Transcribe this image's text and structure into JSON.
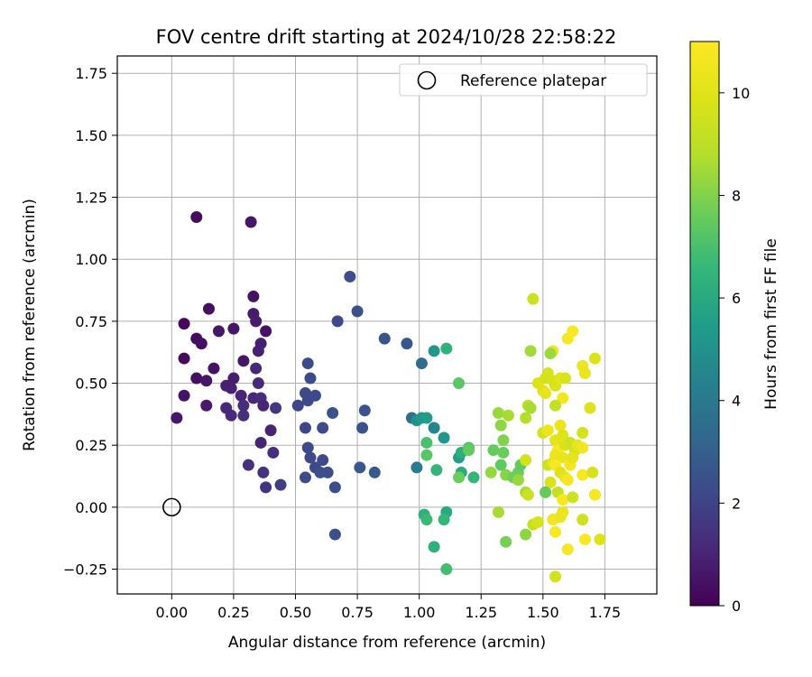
{
  "chart_data": {
    "type": "scatter",
    "title": "FOV centre drift starting at 2024/10/28 22:58:22",
    "xlabel": "Angular distance from reference (arcmin)",
    "ylabel": "Rotation from reference (arcmin)",
    "xlim": [
      -0.22,
      1.96
    ],
    "ylim": [
      -0.35,
      1.82
    ],
    "xticks": [
      0.0,
      0.25,
      0.5,
      0.75,
      1.0,
      1.25,
      1.5,
      1.75
    ],
    "xtick_labels": [
      "0.00",
      "0.25",
      "0.50",
      "0.75",
      "1.00",
      "1.25",
      "1.50",
      "1.75"
    ],
    "yticks": [
      -0.25,
      0.0,
      0.25,
      0.5,
      0.75,
      1.0,
      1.25,
      1.5,
      1.75
    ],
    "ytick_labels": [
      "−0.25",
      "0.00",
      "0.25",
      "0.50",
      "0.75",
      "1.00",
      "1.25",
      "1.50",
      "1.75"
    ],
    "grid": true,
    "legend": {
      "position": "top-right",
      "entries": [
        "Reference platepar"
      ]
    },
    "reference_point": {
      "x": 0.0,
      "y": 0.0,
      "label": "Reference platepar"
    },
    "colorbar": {
      "label": "Hours from first FF file",
      "colormap": "viridis",
      "range": [
        0,
        11
      ],
      "ticks": [
        0,
        2,
        4,
        6,
        8,
        10
      ],
      "tick_labels": [
        "0",
        "2",
        "4",
        "6",
        "8",
        "10"
      ]
    },
    "points": [
      {
        "x": 0.1,
        "y": 1.17,
        "c": 0.3
      },
      {
        "x": 0.32,
        "y": 1.15,
        "c": 0.6
      },
      {
        "x": 0.05,
        "y": 0.74,
        "c": 0.2
      },
      {
        "x": 0.15,
        "y": 0.8,
        "c": 0.4
      },
      {
        "x": 0.1,
        "y": 0.68,
        "c": 0.3
      },
      {
        "x": 0.12,
        "y": 0.66,
        "c": 0.4
      },
      {
        "x": 0.19,
        "y": 0.71,
        "c": 0.6
      },
      {
        "x": 0.25,
        "y": 0.72,
        "c": 0.6
      },
      {
        "x": 0.33,
        "y": 0.85,
        "c": 0.5
      },
      {
        "x": 0.33,
        "y": 0.78,
        "c": 0.7
      },
      {
        "x": 0.34,
        "y": 0.75,
        "c": 0.8
      },
      {
        "x": 0.38,
        "y": 0.71,
        "c": 0.5
      },
      {
        "x": 0.36,
        "y": 0.66,
        "c": 0.9
      },
      {
        "x": 0.35,
        "y": 0.63,
        "c": 0.9
      },
      {
        "x": 0.05,
        "y": 0.6,
        "c": 0.3
      },
      {
        "x": 0.1,
        "y": 0.52,
        "c": 0.4
      },
      {
        "x": 0.17,
        "y": 0.56,
        "c": 0.5
      },
      {
        "x": 0.14,
        "y": 0.51,
        "c": 0.6
      },
      {
        "x": 0.29,
        "y": 0.59,
        "c": 0.6
      },
      {
        "x": 0.25,
        "y": 0.52,
        "c": 0.8
      },
      {
        "x": 0.34,
        "y": 0.56,
        "c": 1.1
      },
      {
        "x": 0.35,
        "y": 0.5,
        "c": 1.2
      },
      {
        "x": 0.05,
        "y": 0.45,
        "c": 0.5
      },
      {
        "x": 0.02,
        "y": 0.36,
        "c": 0.6
      },
      {
        "x": 0.14,
        "y": 0.41,
        "c": 0.7
      },
      {
        "x": 0.22,
        "y": 0.49,
        "c": 0.9
      },
      {
        "x": 0.24,
        "y": 0.48,
        "c": 0.9
      },
      {
        "x": 0.28,
        "y": 0.45,
        "c": 1.0
      },
      {
        "x": 0.33,
        "y": 0.44,
        "c": 1.1
      },
      {
        "x": 0.36,
        "y": 0.44,
        "c": 1.3
      },
      {
        "x": 0.37,
        "y": 0.41,
        "c": 1.0
      },
      {
        "x": 0.22,
        "y": 0.4,
        "c": 1.1
      },
      {
        "x": 0.24,
        "y": 0.37,
        "c": 1.2
      },
      {
        "x": 0.29,
        "y": 0.41,
        "c": 1.3
      },
      {
        "x": 0.29,
        "y": 0.37,
        "c": 1.3
      },
      {
        "x": 0.42,
        "y": 0.4,
        "c": 1.6
      },
      {
        "x": 0.4,
        "y": 0.31,
        "c": 1.0
      },
      {
        "x": 0.36,
        "y": 0.26,
        "c": 1.0
      },
      {
        "x": 0.41,
        "y": 0.22,
        "c": 1.3
      },
      {
        "x": 0.31,
        "y": 0.17,
        "c": 1.4
      },
      {
        "x": 0.37,
        "y": 0.14,
        "c": 1.4
      },
      {
        "x": 0.38,
        "y": 0.08,
        "c": 1.5
      },
      {
        "x": 0.44,
        "y": 0.09,
        "c": 1.8
      },
      {
        "x": 0.72,
        "y": 0.93,
        "c": 2.4
      },
      {
        "x": 0.75,
        "y": 0.79,
        "c": 2.5
      },
      {
        "x": 0.67,
        "y": 0.75,
        "c": 2.3
      },
      {
        "x": 0.86,
        "y": 0.68,
        "c": 2.6
      },
      {
        "x": 0.95,
        "y": 0.66,
        "c": 2.7
      },
      {
        "x": 0.55,
        "y": 0.58,
        "c": 2.3
      },
      {
        "x": 0.56,
        "y": 0.52,
        "c": 2.3
      },
      {
        "x": 0.54,
        "y": 0.46,
        "c": 2.2
      },
      {
        "x": 0.58,
        "y": 0.45,
        "c": 2.2
      },
      {
        "x": 0.55,
        "y": 0.43,
        "c": 2.2
      },
      {
        "x": 0.51,
        "y": 0.41,
        "c": 2.1
      },
      {
        "x": 0.78,
        "y": 0.39,
        "c": 2.6
      },
      {
        "x": 0.65,
        "y": 0.38,
        "c": 2.6
      },
      {
        "x": 0.54,
        "y": 0.32,
        "c": 2.1
      },
      {
        "x": 0.61,
        "y": 0.32,
        "c": 2.3
      },
      {
        "x": 0.77,
        "y": 0.32,
        "c": 2.6
      },
      {
        "x": 0.55,
        "y": 0.24,
        "c": 2.2
      },
      {
        "x": 0.56,
        "y": 0.2,
        "c": 2.2
      },
      {
        "x": 0.61,
        "y": 0.19,
        "c": 2.3
      },
      {
        "x": 0.58,
        "y": 0.16,
        "c": 2.2
      },
      {
        "x": 0.6,
        "y": 0.14,
        "c": 2.4
      },
      {
        "x": 0.63,
        "y": 0.14,
        "c": 2.4
      },
      {
        "x": 0.54,
        "y": 0.12,
        "c": 2.3
      },
      {
        "x": 0.66,
        "y": 0.08,
        "c": 2.4
      },
      {
        "x": 0.76,
        "y": 0.16,
        "c": 2.7
      },
      {
        "x": 0.82,
        "y": 0.14,
        "c": 2.8
      },
      {
        "x": 0.66,
        "y": -0.11,
        "c": 2.4
      },
      {
        "x": 1.06,
        "y": 0.63,
        "c": 5.2
      },
      {
        "x": 1.01,
        "y": 0.58,
        "c": 3.5
      },
      {
        "x": 1.11,
        "y": 0.64,
        "c": 6.3
      },
      {
        "x": 1.16,
        "y": 0.5,
        "c": 7.3
      },
      {
        "x": 0.97,
        "y": 0.36,
        "c": 3.6
      },
      {
        "x": 0.99,
        "y": 0.35,
        "c": 5.0
      },
      {
        "x": 1.01,
        "y": 0.36,
        "c": 5.3
      },
      {
        "x": 1.03,
        "y": 0.36,
        "c": 5.5
      },
      {
        "x": 1.06,
        "y": 0.32,
        "c": 4.5
      },
      {
        "x": 1.03,
        "y": 0.26,
        "c": 7.0
      },
      {
        "x": 1.1,
        "y": 0.28,
        "c": 5.2
      },
      {
        "x": 1.03,
        "y": 0.21,
        "c": 7.3
      },
      {
        "x": 0.99,
        "y": 0.16,
        "c": 4.1
      },
      {
        "x": 1.07,
        "y": 0.15,
        "c": 6.5
      },
      {
        "x": 1.16,
        "y": 0.2,
        "c": 5.5
      },
      {
        "x": 1.17,
        "y": 0.22,
        "c": 6.2
      },
      {
        "x": 1.2,
        "y": 0.24,
        "c": 7.2
      },
      {
        "x": 1.2,
        "y": 0.23,
        "c": 7.5
      },
      {
        "x": 1.17,
        "y": 0.14,
        "c": 6.1
      },
      {
        "x": 1.16,
        "y": 0.12,
        "c": 7.6
      },
      {
        "x": 1.22,
        "y": 0.12,
        "c": 6.5
      },
      {
        "x": 1.02,
        "y": -0.03,
        "c": 6.3
      },
      {
        "x": 1.03,
        "y": -0.05,
        "c": 6.7
      },
      {
        "x": 1.11,
        "y": -0.02,
        "c": 6.0
      },
      {
        "x": 1.1,
        "y": -0.05,
        "c": 6.6
      },
      {
        "x": 1.06,
        "y": -0.16,
        "c": 6.3
      },
      {
        "x": 1.11,
        "y": -0.25,
        "c": 6.9
      },
      {
        "x": 1.29,
        "y": 0.14,
        "c": 8.3
      },
      {
        "x": 1.3,
        "y": 0.23,
        "c": 7.5
      },
      {
        "x": 1.32,
        "y": 0.38,
        "c": 8.4
      },
      {
        "x": 1.33,
        "y": 0.33,
        "c": 8.2
      },
      {
        "x": 1.34,
        "y": 0.27,
        "c": 8.0
      },
      {
        "x": 1.34,
        "y": 0.22,
        "c": 7.6
      },
      {
        "x": 1.33,
        "y": 0.17,
        "c": 7.4
      },
      {
        "x": 1.35,
        "y": 0.13,
        "c": 8.1
      },
      {
        "x": 1.36,
        "y": 0.37,
        "c": 8.6
      },
      {
        "x": 1.38,
        "y": 0.12,
        "c": 7.7
      },
      {
        "x": 1.4,
        "y": 0.14,
        "c": 7.6
      },
      {
        "x": 1.41,
        "y": 0.17,
        "c": 7.5
      },
      {
        "x": 1.4,
        "y": 0.11,
        "c": 8.3
      },
      {
        "x": 1.32,
        "y": -0.02,
        "c": 8.6
      },
      {
        "x": 1.35,
        "y": -0.14,
        "c": 7.8
      },
      {
        "x": 1.43,
        "y": 0.19,
        "c": 9.6
      },
      {
        "x": 1.43,
        "y": 0.36,
        "c": 8.8
      },
      {
        "x": 1.44,
        "y": 0.41,
        "c": 9.0
      },
      {
        "x": 1.45,
        "y": 0.4,
        "c": 8.6
      },
      {
        "x": 1.45,
        "y": 0.63,
        "c": 8.5
      },
      {
        "x": 1.46,
        "y": 0.84,
        "c": 9.4
      },
      {
        "x": 1.43,
        "y": 0.06,
        "c": 8.6
      },
      {
        "x": 1.44,
        "y": 0.05,
        "c": 9.4
      },
      {
        "x": 1.43,
        "y": -0.11,
        "c": 8.2
      },
      {
        "x": 1.46,
        "y": -0.07,
        "c": 9.3
      },
      {
        "x": 1.48,
        "y": -0.06,
        "c": 9.7
      },
      {
        "x": 1.48,
        "y": 0.5,
        "c": 9.9
      },
      {
        "x": 1.5,
        "y": 0.47,
        "c": 9.9
      },
      {
        "x": 1.51,
        "y": 0.52,
        "c": 9.6
      },
      {
        "x": 1.52,
        "y": 0.54,
        "c": 9.7
      },
      {
        "x": 1.54,
        "y": 0.63,
        "c": 10.6
      },
      {
        "x": 1.53,
        "y": 0.62,
        "c": 8.4
      },
      {
        "x": 1.54,
        "y": 0.51,
        "c": 9.7
      },
      {
        "x": 1.55,
        "y": 0.49,
        "c": 9.8
      },
      {
        "x": 1.57,
        "y": 0.52,
        "c": 10.1
      },
      {
        "x": 1.59,
        "y": 0.52,
        "c": 9.8
      },
      {
        "x": 1.51,
        "y": 0.46,
        "c": 10.2
      },
      {
        "x": 1.58,
        "y": 0.44,
        "c": 10.6
      },
      {
        "x": 1.55,
        "y": 0.41,
        "c": 9.2
      },
      {
        "x": 1.6,
        "y": 0.68,
        "c": 10.8
      },
      {
        "x": 1.62,
        "y": 0.71,
        "c": 10.9
      },
      {
        "x": 1.66,
        "y": 0.57,
        "c": 10.5
      },
      {
        "x": 1.67,
        "y": 0.54,
        "c": 10.3
      },
      {
        "x": 1.71,
        "y": 0.6,
        "c": 9.8
      },
      {
        "x": 1.69,
        "y": 0.4,
        "c": 9.9
      },
      {
        "x": 1.5,
        "y": 0.3,
        "c": 9.6
      },
      {
        "x": 1.52,
        "y": 0.31,
        "c": 10.5
      },
      {
        "x": 1.55,
        "y": 0.27,
        "c": 10.1
      },
      {
        "x": 1.57,
        "y": 0.33,
        "c": 10.4
      },
      {
        "x": 1.58,
        "y": 0.29,
        "c": 10.0
      },
      {
        "x": 1.56,
        "y": 0.23,
        "c": 10.9
      },
      {
        "x": 1.55,
        "y": 0.21,
        "c": 10.4
      },
      {
        "x": 1.58,
        "y": 0.2,
        "c": 10.3
      },
      {
        "x": 1.59,
        "y": 0.25,
        "c": 9.8
      },
      {
        "x": 1.61,
        "y": 0.26,
        "c": 9.4
      },
      {
        "x": 1.63,
        "y": 0.23,
        "c": 9.6
      },
      {
        "x": 1.64,
        "y": 0.25,
        "c": 10.2
      },
      {
        "x": 1.66,
        "y": 0.3,
        "c": 9.6
      },
      {
        "x": 1.66,
        "y": 0.24,
        "c": 10.6
      },
      {
        "x": 1.52,
        "y": 0.17,
        "c": 9.4
      },
      {
        "x": 1.54,
        "y": 0.18,
        "c": 10.2
      },
      {
        "x": 1.55,
        "y": 0.17,
        "c": 10.9
      },
      {
        "x": 1.57,
        "y": 0.14,
        "c": 9.9
      },
      {
        "x": 1.59,
        "y": 0.12,
        "c": 10.3
      },
      {
        "x": 1.6,
        "y": 0.11,
        "c": 10.8
      },
      {
        "x": 1.61,
        "y": 0.17,
        "c": 10.7
      },
      {
        "x": 1.62,
        "y": 0.2,
        "c": 10.2
      },
      {
        "x": 1.66,
        "y": 0.13,
        "c": 10.9
      },
      {
        "x": 1.7,
        "y": 0.14,
        "c": 9.7
      },
      {
        "x": 1.53,
        "y": 0.1,
        "c": 9.8
      },
      {
        "x": 1.56,
        "y": 0.06,
        "c": 9.2
      },
      {
        "x": 1.51,
        "y": 0.06,
        "c": 7.5
      },
      {
        "x": 1.58,
        "y": 0.03,
        "c": 10.8
      },
      {
        "x": 1.62,
        "y": 0.04,
        "c": 9.5
      },
      {
        "x": 1.58,
        "y": -0.02,
        "c": 10.3
      },
      {
        "x": 1.71,
        "y": 0.05,
        "c": 10.8
      },
      {
        "x": 1.54,
        "y": -0.05,
        "c": 10.6
      },
      {
        "x": 1.57,
        "y": -0.04,
        "c": 10.4
      },
      {
        "x": 1.55,
        "y": -0.1,
        "c": 10.9
      },
      {
        "x": 1.66,
        "y": -0.05,
        "c": 9.5
      },
      {
        "x": 1.67,
        "y": -0.13,
        "c": 10.9
      },
      {
        "x": 1.73,
        "y": -0.13,
        "c": 9.9
      },
      {
        "x": 1.6,
        "y": -0.17,
        "c": 10.8
      },
      {
        "x": 1.55,
        "y": -0.28,
        "c": 9.6
      }
    ]
  }
}
